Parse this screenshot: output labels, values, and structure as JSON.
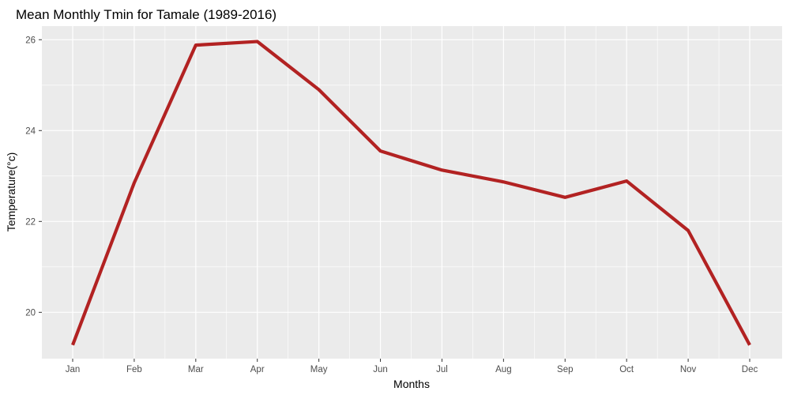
{
  "chart_data": {
    "type": "line",
    "title": "Mean Monthly Tmin for Tamale (1989-2016)",
    "xlabel": "Months",
    "ylabel": "Temperature(°c)",
    "categories": [
      "Jan",
      "Feb",
      "Mar",
      "Apr",
      "May",
      "Jun",
      "Jul",
      "Aug",
      "Sep",
      "Oct",
      "Nov",
      "Dec"
    ],
    "series": [
      {
        "values": [
          19.28,
          22.85,
          25.88,
          25.96,
          24.9,
          23.55,
          23.13,
          22.87,
          22.53,
          22.89,
          21.8,
          19.28
        ],
        "color": "#b22222"
      }
    ],
    "yticks": [
      20,
      22,
      24,
      26
    ],
    "ylim": [
      18.98,
      26.3
    ],
    "grid": true,
    "legend": "none",
    "panel_background": "#ebebeb",
    "grid_color": "#ffffff"
  }
}
